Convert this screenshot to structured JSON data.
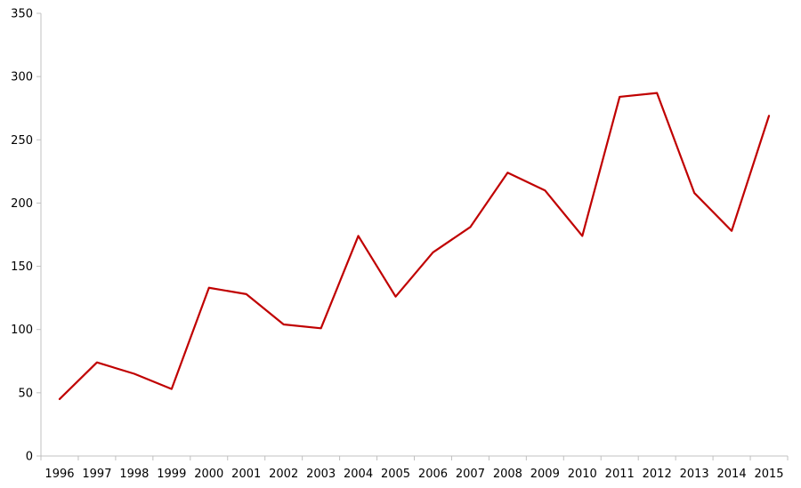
{
  "chart_data": {
    "type": "line",
    "title": "",
    "xlabel": "",
    "ylabel": "",
    "categories": [
      "1996",
      "1997",
      "1998",
      "1999",
      "2000",
      "2001",
      "2002",
      "2003",
      "2004",
      "2005",
      "2006",
      "2007",
      "2008",
      "2009",
      "2010",
      "2011",
      "2012",
      "2013",
      "2014",
      "2015"
    ],
    "series": [
      {
        "values": [
          45,
          74,
          65,
          53,
          133,
          128,
          104,
          101,
          174,
          126,
          161,
          181,
          224,
          210,
          174,
          284,
          287,
          208,
          178,
          269
        ],
        "color": "#c00000"
      }
    ],
    "ylim": [
      0,
      350
    ],
    "yticks": [
      0,
      50,
      100,
      150,
      200,
      250,
      300,
      350
    ],
    "grid": false,
    "legend": "none"
  }
}
